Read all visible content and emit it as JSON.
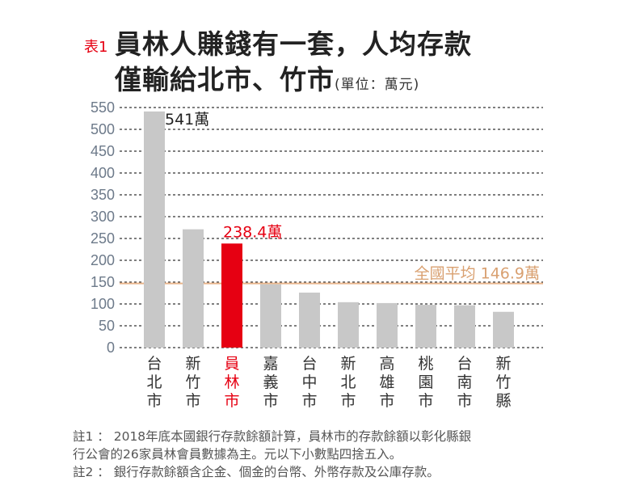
{
  "title": {
    "tag": "表1",
    "line1": "員林人賺錢有一套，人均存款",
    "line2": "僅輸給北市、竹市",
    "unit": "(單位：萬元)"
  },
  "chart_data": {
    "type": "bar",
    "categories": [
      "台北市",
      "新竹市",
      "員林市",
      "嘉義市",
      "台中市",
      "新北市",
      "高雄市",
      "桃園市",
      "台南市",
      "新竹縣"
    ],
    "values": [
      541,
      271,
      238.4,
      145,
      126,
      104,
      102,
      98,
      97,
      82
    ],
    "highlight": "員林市",
    "data_labels": {
      "台北市": "541萬",
      "員林市": "238.4萬"
    },
    "ylim": [
      0,
      550
    ],
    "yticks": [
      0,
      50,
      100,
      150,
      200,
      250,
      300,
      350,
      400,
      450,
      500,
      550
    ],
    "grid": true,
    "reference_line": {
      "value": 146.9,
      "label": "全國平均 146.9萬"
    },
    "colors": {
      "bar": "#c8c8c8",
      "highlight": "#e60012",
      "reference": "#e8b48a",
      "reference_text": "#d9a070",
      "tick": "#6d7a8a"
    }
  },
  "notes": [
    "註1 ： 2018年底本國銀行存款餘額計算，員林市的存款餘額以彰化縣銀",
    "行公會的26家員林會員數據為主。元以下小數點四捨五入。",
    "註2 ： 銀行存款餘額含企金、個金的台幣、外幣存款及公庫存款。"
  ]
}
